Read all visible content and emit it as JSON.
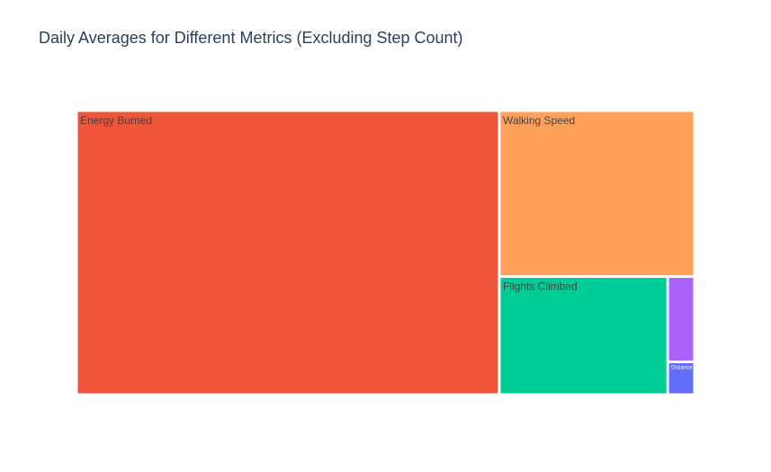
{
  "chart_data": {
    "type": "treemap",
    "title": "Daily Averages for Different Metrics (Excluding Step Count)",
    "categories": [
      "Energy Burned",
      "Walking Speed",
      "Flights Climbed",
      null,
      "Distance"
    ],
    "values": [
      68.2,
      18.4,
      11.3,
      1.3,
      0.5
    ],
    "colors": [
      "#EF553B",
      "#FFA15A",
      "#00CC96",
      "#AB63FA",
      "#636EFA"
    ]
  }
}
